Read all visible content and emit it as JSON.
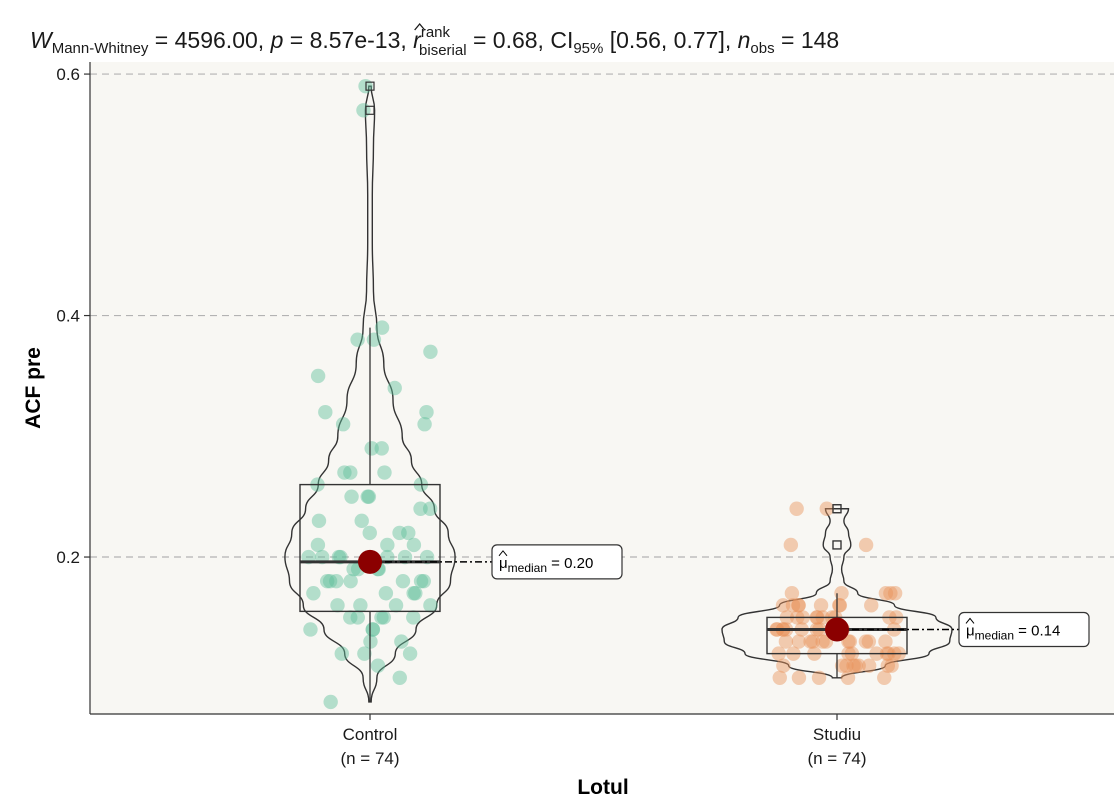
{
  "chart_data": {
    "type": "violin-box-scatter",
    "subtitle": {
      "stat_symbol": "W",
      "stat_sub": "Mann-Whitney",
      "stat_value": "4596.00",
      "p_symbol": "p",
      "p_value": "8.57e-13",
      "effect_symbol": "r",
      "effect_sup": "rank",
      "effect_sub": "biserial",
      "effect_value": "0.68",
      "ci_symbol": "CI",
      "ci_sub": "95%",
      "ci_value": "[0.56, 0.77]",
      "n_symbol": "n",
      "n_sub": "obs",
      "n_value": "148"
    },
    "xlabel": "Lotul",
    "ylabel": "ACF pre",
    "ylim": [
      0.07,
      0.61
    ],
    "y_ticks": [
      {
        "value": 0.2,
        "label": "0.2"
      },
      {
        "value": 0.4,
        "label": "0.4"
      },
      {
        "value": 0.6,
        "label": "0.6"
      }
    ],
    "grid": "horizontal-dashed",
    "median_label_prefix": "μ",
    "median_label_sub": "median",
    "groups": [
      {
        "name": "Control",
        "n_label": "(n = 74)",
        "color": "#5fbf9c",
        "median": 0.196,
        "median_label": "0.20",
        "q1": 0.155,
        "q3": 0.26,
        "whisker_low": 0.08,
        "whisker_high": 0.39,
        "outliers": [
          0.57,
          0.59
        ],
        "violin": [
          [
            0.08,
            0.01
          ],
          [
            0.1,
            0.06
          ],
          [
            0.12,
            0.22
          ],
          [
            0.14,
            0.4
          ],
          [
            0.16,
            0.58
          ],
          [
            0.18,
            0.7
          ],
          [
            0.2,
            0.74
          ],
          [
            0.22,
            0.68
          ],
          [
            0.24,
            0.56
          ],
          [
            0.26,
            0.45
          ],
          [
            0.28,
            0.36
          ],
          [
            0.3,
            0.28
          ],
          [
            0.33,
            0.2
          ],
          [
            0.36,
            0.12
          ],
          [
            0.39,
            0.06
          ],
          [
            0.42,
            0.03
          ],
          [
            0.46,
            0.02
          ],
          [
            0.5,
            0.02
          ],
          [
            0.54,
            0.03
          ],
          [
            0.57,
            0.04
          ],
          [
            0.59,
            0.01
          ]
        ],
        "points": [
          0.08,
          0.1,
          0.11,
          0.12,
          0.12,
          0.12,
          0.13,
          0.13,
          0.14,
          0.14,
          0.14,
          0.15,
          0.15,
          0.15,
          0.15,
          0.15,
          0.16,
          0.16,
          0.16,
          0.16,
          0.17,
          0.17,
          0.17,
          0.17,
          0.18,
          0.18,
          0.18,
          0.18,
          0.18,
          0.18,
          0.18,
          0.19,
          0.19,
          0.19,
          0.19,
          0.2,
          0.2,
          0.2,
          0.2,
          0.2,
          0.2,
          0.21,
          0.21,
          0.21,
          0.22,
          0.22,
          0.22,
          0.23,
          0.23,
          0.24,
          0.24,
          0.25,
          0.25,
          0.25,
          0.26,
          0.26,
          0.27,
          0.27,
          0.27,
          0.29,
          0.29,
          0.31,
          0.31,
          0.32,
          0.32,
          0.34,
          0.35,
          0.37,
          0.38,
          0.38,
          0.39,
          0.57,
          0.59,
          0.2
        ]
      },
      {
        "name": "Studiu",
        "n_label": "(n = 74)",
        "color": "#e8925a",
        "median": 0.14,
        "median_label": "0.14",
        "q1": 0.12,
        "q3": 0.15,
        "whisker_low": 0.1,
        "whisker_high": 0.17,
        "outliers": [
          0.21,
          0.21,
          0.24,
          0.24
        ],
        "violin": [
          [
            0.1,
            0.04
          ],
          [
            0.11,
            0.42
          ],
          [
            0.12,
            0.8
          ],
          [
            0.13,
            0.98
          ],
          [
            0.14,
            1.0
          ],
          [
            0.15,
            0.86
          ],
          [
            0.16,
            0.5
          ],
          [
            0.17,
            0.18
          ],
          [
            0.18,
            0.06
          ],
          [
            0.19,
            0.04
          ],
          [
            0.2,
            0.06
          ],
          [
            0.21,
            0.12
          ],
          [
            0.22,
            0.1
          ],
          [
            0.23,
            0.06
          ],
          [
            0.24,
            0.1
          ]
        ],
        "points": [
          0.1,
          0.1,
          0.1,
          0.1,
          0.1,
          0.11,
          0.11,
          0.11,
          0.11,
          0.11,
          0.11,
          0.11,
          0.11,
          0.11,
          0.12,
          0.12,
          0.12,
          0.12,
          0.12,
          0.12,
          0.12,
          0.12,
          0.12,
          0.12,
          0.13,
          0.13,
          0.13,
          0.13,
          0.13,
          0.13,
          0.13,
          0.13,
          0.13,
          0.13,
          0.13,
          0.14,
          0.14,
          0.14,
          0.14,
          0.14,
          0.14,
          0.14,
          0.14,
          0.14,
          0.14,
          0.14,
          0.14,
          0.15,
          0.15,
          0.15,
          0.15,
          0.15,
          0.15,
          0.15,
          0.15,
          0.15,
          0.15,
          0.16,
          0.16,
          0.16,
          0.16,
          0.16,
          0.16,
          0.16,
          0.16,
          0.17,
          0.17,
          0.17,
          0.17,
          0.17,
          0.21,
          0.21,
          0.24,
          0.24
        ]
      }
    ]
  },
  "colors": {
    "panel_bg": "#f8f7f3",
    "median_point": "#8b0000",
    "grid": "#b3b3b3"
  }
}
